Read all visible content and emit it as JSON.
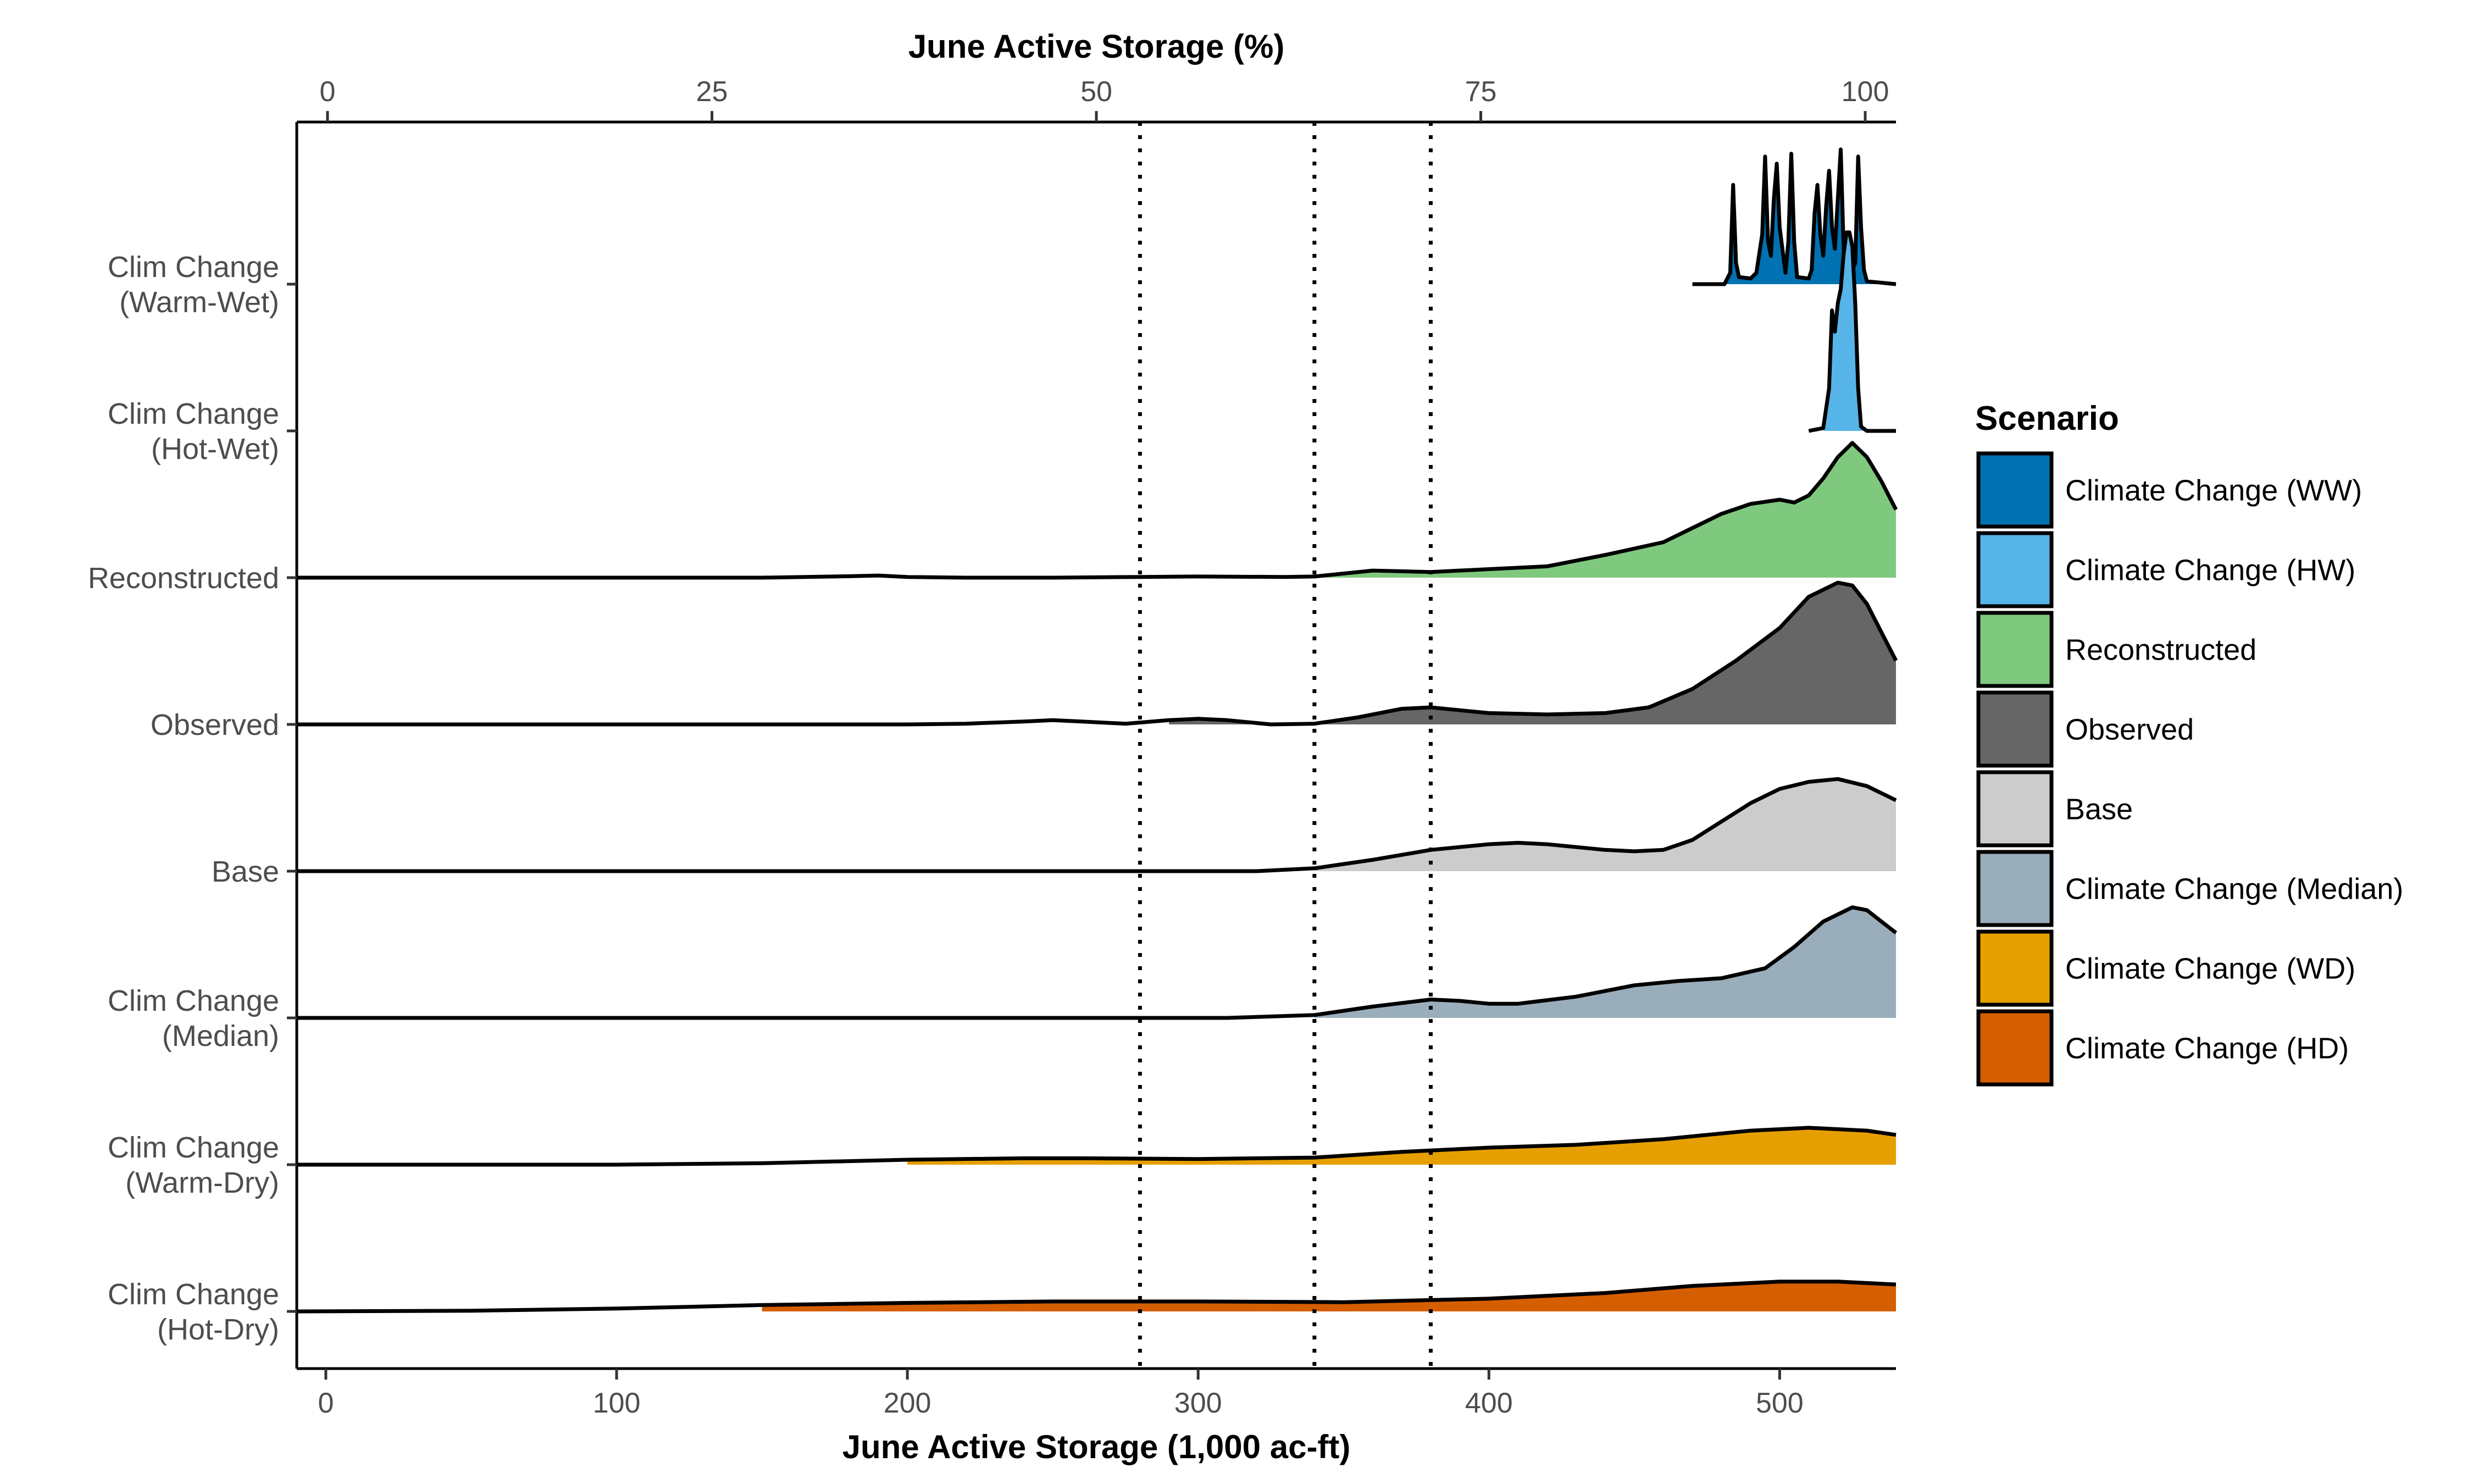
{
  "chart_data": {
    "type": "ridgeline",
    "bottom_axis": {
      "title": "June Active Storage (1,000 ac-ft)",
      "range": [
        -10,
        540
      ],
      "ticks": [
        0,
        100,
        200,
        300,
        400,
        500
      ],
      "tick_labels": [
        "0",
        "100",
        "200",
        "300",
        "400",
        "500"
      ]
    },
    "top_axis": {
      "title": "June Active Storage (%)",
      "range": [
        -2,
        102
      ],
      "ticks": [
        0,
        25,
        50,
        75,
        100
      ],
      "tick_labels": [
        "0",
        "25",
        "50",
        "75",
        "100"
      ]
    },
    "reference_lines": [
      280,
      340,
      380
    ],
    "legend": {
      "title": "Scenario",
      "position": "right",
      "entries": [
        {
          "label": "Climate Change (WW)",
          "color": "#0072B2"
        },
        {
          "label": "Climate Change (HW)",
          "color": "#56B4E9"
        },
        {
          "label": "Reconstructed",
          "color": "#7FC97F"
        },
        {
          "label": "Observed",
          "color": "#666666"
        },
        {
          "label": "Base",
          "color": "#CCCCCC"
        },
        {
          "label": "Climate Change (Median)",
          "color": "#9AADBA"
        },
        {
          "label": "Climate Change (WD)",
          "color": "#E69F00"
        },
        {
          "label": "Climate Change (HD)",
          "color": "#D55E00"
        }
      ]
    },
    "series": [
      {
        "label_lines": [
          "Clim Change",
          "(Warm-Wet)"
        ],
        "color": "#0072B2",
        "fill_from": 475,
        "density": [
          [
            470,
            0
          ],
          [
            481,
            0
          ],
          [
            483,
            0.08
          ],
          [
            484,
            0.7
          ],
          [
            485,
            0.15
          ],
          [
            486,
            0.05
          ],
          [
            490,
            0.04
          ],
          [
            492,
            0.08
          ],
          [
            494,
            0.35
          ],
          [
            495,
            0.9
          ],
          [
            496,
            0.3
          ],
          [
            497,
            0.2
          ],
          [
            498,
            0.6
          ],
          [
            499,
            0.85
          ],
          [
            500,
            0.4
          ],
          [
            502,
            0.08
          ],
          [
            503,
            0.3
          ],
          [
            504,
            0.92
          ],
          [
            505,
            0.3
          ],
          [
            506,
            0.05
          ],
          [
            510,
            0.04
          ],
          [
            511,
            0.1
          ],
          [
            512,
            0.5
          ],
          [
            513,
            0.7
          ],
          [
            514,
            0.35
          ],
          [
            515,
            0.2
          ],
          [
            516,
            0.55
          ],
          [
            517,
            0.8
          ],
          [
            518,
            0.4
          ],
          [
            519,
            0.25
          ],
          [
            520,
            0.6
          ],
          [
            521,
            0.95
          ],
          [
            522,
            0.25
          ],
          [
            523,
            0.12
          ],
          [
            524,
            0.05
          ],
          [
            526,
            0.15
          ],
          [
            527,
            0.9
          ],
          [
            528,
            0.4
          ],
          [
            529,
            0.1
          ],
          [
            530,
            0.02
          ],
          [
            540,
            0
          ]
        ]
      },
      {
        "label_lines": [
          "Clim Change",
          "(Hot-Wet)"
        ],
        "color": "#56B4E9",
        "fill_from": 515,
        "density": [
          [
            510,
            0
          ],
          [
            515,
            0.02
          ],
          [
            517,
            0.3
          ],
          [
            518,
            0.85
          ],
          [
            519,
            0.7
          ],
          [
            520,
            0.9
          ],
          [
            521,
            1.0
          ],
          [
            522,
            1.25
          ],
          [
            523,
            1.4
          ],
          [
            524,
            1.4
          ],
          [
            525,
            1.3
          ],
          [
            526,
            0.9
          ],
          [
            527,
            0.3
          ],
          [
            528,
            0.03
          ],
          [
            530,
            0
          ],
          [
            540,
            0
          ]
        ]
      },
      {
        "label_lines": [
          "Reconstructed"
        ],
        "color": "#7FC97F",
        "fill_from": 340,
        "density": [
          [
            -10,
            0
          ],
          [
            150,
            0
          ],
          [
            180,
            0.01
          ],
          [
            190,
            0.015
          ],
          [
            200,
            0.005
          ],
          [
            220,
            0
          ],
          [
            250,
            0
          ],
          [
            280,
            0.005
          ],
          [
            300,
            0.008
          ],
          [
            330,
            0.005
          ],
          [
            340,
            0.008
          ],
          [
            360,
            0.05
          ],
          [
            380,
            0.04
          ],
          [
            400,
            0.06
          ],
          [
            420,
            0.08
          ],
          [
            440,
            0.16
          ],
          [
            460,
            0.25
          ],
          [
            470,
            0.35
          ],
          [
            480,
            0.45
          ],
          [
            490,
            0.52
          ],
          [
            500,
            0.55
          ],
          [
            505,
            0.53
          ],
          [
            510,
            0.58
          ],
          [
            515,
            0.7
          ],
          [
            520,
            0.85
          ],
          [
            525,
            0.95
          ],
          [
            530,
            0.85
          ],
          [
            535,
            0.68
          ],
          [
            540,
            0.48
          ]
        ]
      },
      {
        "label_lines": [
          "Observed"
        ],
        "color": "#666666",
        "fill_from": 280,
        "density": [
          [
            -10,
            0
          ],
          [
            200,
            0
          ],
          [
            220,
            0.005
          ],
          [
            240,
            0.02
          ],
          [
            250,
            0.03
          ],
          [
            260,
            0.02
          ],
          [
            275,
            0.005
          ],
          [
            290,
            0.03
          ],
          [
            300,
            0.04
          ],
          [
            310,
            0.03
          ],
          [
            325,
            0
          ],
          [
            340,
            0.005
          ],
          [
            355,
            0.05
          ],
          [
            370,
            0.11
          ],
          [
            380,
            0.12
          ],
          [
            390,
            0.1
          ],
          [
            400,
            0.08
          ],
          [
            420,
            0.07
          ],
          [
            440,
            0.08
          ],
          [
            455,
            0.12
          ],
          [
            470,
            0.25
          ],
          [
            485,
            0.45
          ],
          [
            500,
            0.68
          ],
          [
            510,
            0.9
          ],
          [
            520,
            1.0
          ],
          [
            525,
            0.98
          ],
          [
            530,
            0.85
          ],
          [
            535,
            0.65
          ],
          [
            540,
            0.45
          ]
        ]
      },
      {
        "label_lines": [
          "Base"
        ],
        "color": "#CCCCCC",
        "fill_from": 340,
        "density": [
          [
            -10,
            0
          ],
          [
            320,
            0
          ],
          [
            340,
            0.02
          ],
          [
            360,
            0.08
          ],
          [
            380,
            0.15
          ],
          [
            400,
            0.19
          ],
          [
            410,
            0.2
          ],
          [
            420,
            0.19
          ],
          [
            440,
            0.15
          ],
          [
            450,
            0.14
          ],
          [
            460,
            0.15
          ],
          [
            470,
            0.22
          ],
          [
            480,
            0.35
          ],
          [
            490,
            0.48
          ],
          [
            500,
            0.58
          ],
          [
            510,
            0.63
          ],
          [
            520,
            0.65
          ],
          [
            530,
            0.6
          ],
          [
            540,
            0.5
          ]
        ]
      },
      {
        "label_lines": [
          "Clim Change",
          "(Median)"
        ],
        "color": "#9AADBA",
        "fill_from": 340,
        "density": [
          [
            -10,
            0
          ],
          [
            310,
            0
          ],
          [
            340,
            0.02
          ],
          [
            360,
            0.08
          ],
          [
            380,
            0.13
          ],
          [
            390,
            0.12
          ],
          [
            400,
            0.1
          ],
          [
            410,
            0.1
          ],
          [
            430,
            0.15
          ],
          [
            450,
            0.23
          ],
          [
            465,
            0.26
          ],
          [
            480,
            0.28
          ],
          [
            495,
            0.35
          ],
          [
            505,
            0.5
          ],
          [
            515,
            0.68
          ],
          [
            525,
            0.78
          ],
          [
            530,
            0.76
          ],
          [
            535,
            0.68
          ],
          [
            540,
            0.6
          ]
        ]
      },
      {
        "label_lines": [
          "Clim Change",
          "(Warm-Dry)"
        ],
        "color": "#E69F00",
        "fill_from": 170,
        "density": [
          [
            -10,
            0
          ],
          [
            100,
            0
          ],
          [
            150,
            0.01
          ],
          [
            200,
            0.035
          ],
          [
            240,
            0.045
          ],
          [
            260,
            0.045
          ],
          [
            300,
            0.04
          ],
          [
            340,
            0.05
          ],
          [
            370,
            0.09
          ],
          [
            400,
            0.12
          ],
          [
            430,
            0.14
          ],
          [
            460,
            0.18
          ],
          [
            490,
            0.24
          ],
          [
            510,
            0.26
          ],
          [
            530,
            0.24
          ],
          [
            540,
            0.21
          ]
        ]
      },
      {
        "label_lines": [
          "Clim Change",
          "(Hot-Dry)"
        ],
        "color": "#D55E00",
        "fill_from": 130,
        "density": [
          [
            -10,
            0
          ],
          [
            50,
            0.005
          ],
          [
            100,
            0.02
          ],
          [
            150,
            0.045
          ],
          [
            200,
            0.06
          ],
          [
            250,
            0.07
          ],
          [
            300,
            0.07
          ],
          [
            350,
            0.065
          ],
          [
            400,
            0.09
          ],
          [
            440,
            0.13
          ],
          [
            470,
            0.18
          ],
          [
            500,
            0.21
          ],
          [
            520,
            0.21
          ],
          [
            540,
            0.19
          ]
        ]
      }
    ]
  }
}
